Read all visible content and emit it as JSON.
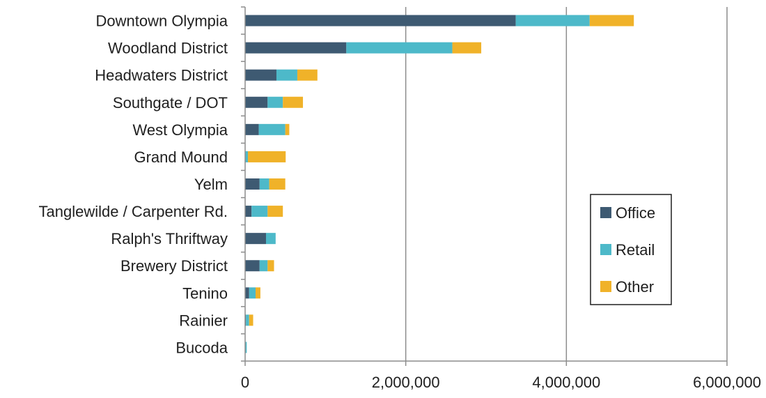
{
  "chart_data": {
    "type": "bar",
    "orientation": "horizontal",
    "stacked": true,
    "categories": [
      "Downtown Olympia",
      "Woodland District",
      "Headwaters District",
      "Southgate / DOT",
      "West Olympia",
      "Grand Mound",
      "Yelm",
      "Tanglewilde / Carpenter Rd.",
      "Ralph's Thriftway",
      "Brewery District",
      "Tenino",
      "Rainier",
      "Bucoda"
    ],
    "series": [
      {
        "name": "Office",
        "color": "#3e5a72",
        "values": [
          3370000,
          1260000,
          390000,
          280000,
          170000,
          5000,
          180000,
          80000,
          260000,
          180000,
          50000,
          10000,
          5000
        ]
      },
      {
        "name": "Retail",
        "color": "#4db9c9",
        "values": [
          920000,
          1320000,
          260000,
          190000,
          330000,
          30000,
          120000,
          200000,
          120000,
          100000,
          80000,
          40000,
          15000
        ]
      },
      {
        "name": "Other",
        "color": "#f0b229",
        "values": [
          550000,
          360000,
          250000,
          250000,
          50000,
          470000,
          200000,
          190000,
          0,
          80000,
          60000,
          50000,
          0
        ]
      }
    ],
    "xlim": [
      0,
      6000000
    ],
    "xticks": [
      0,
      2000000,
      4000000,
      6000000
    ],
    "xtick_labels": [
      "0",
      "2,000,000",
      "4,000,000",
      "6,000,000"
    ],
    "grid": "vertical",
    "legend_position": "right",
    "title": "",
    "xlabel": "",
    "ylabel": ""
  }
}
